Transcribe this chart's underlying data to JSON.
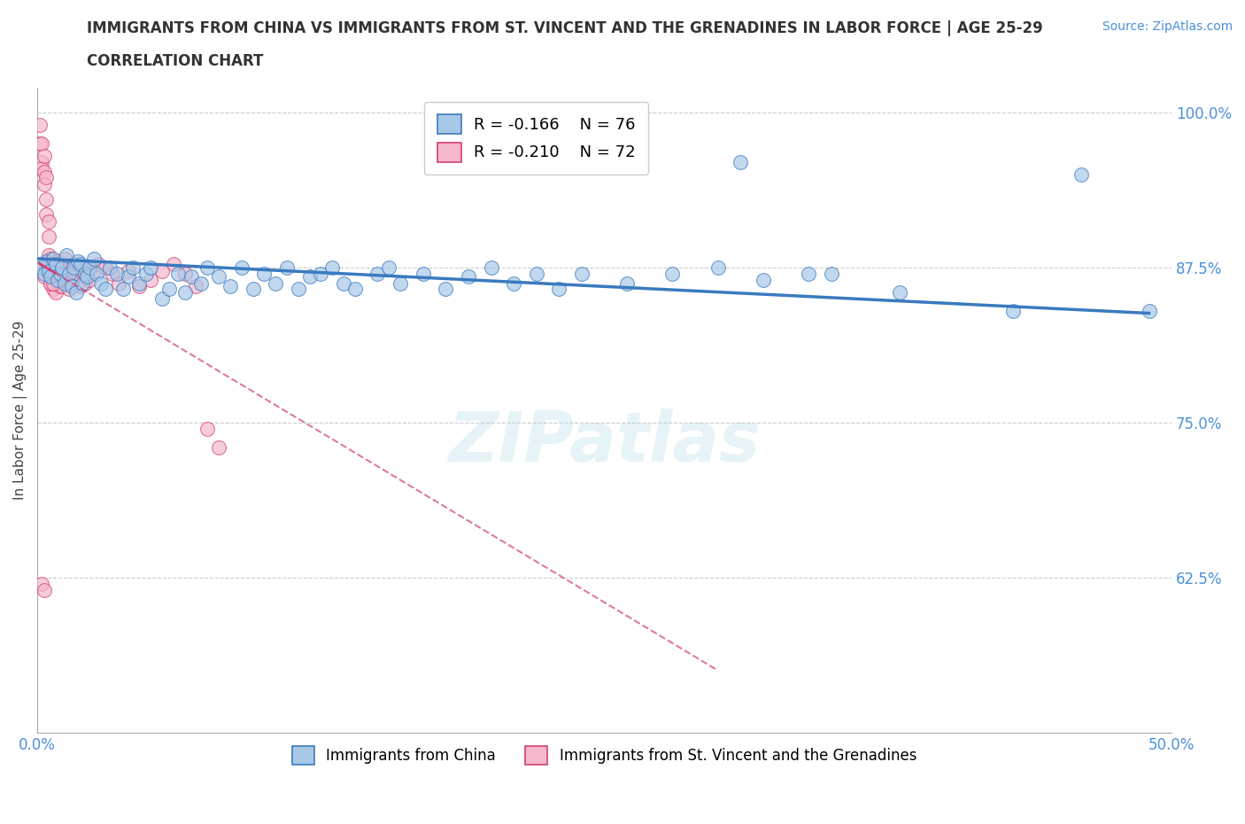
{
  "title_line1": "IMMIGRANTS FROM CHINA VS IMMIGRANTS FROM ST. VINCENT AND THE GRENADINES IN LABOR FORCE | AGE 25-29",
  "title_line2": "CORRELATION CHART",
  "source_text": "Source: ZipAtlas.com",
  "ylabel": "In Labor Force | Age 25-29",
  "xlim": [
    0.0,
    0.5
  ],
  "ylim": [
    0.5,
    1.02
  ],
  "blue_color": "#a8c8e8",
  "blue_line_color": "#3a7abf",
  "pink_color": "#f5b8cc",
  "pink_line_color": "#d44070",
  "legend_blue_label": "R = -0.166    N = 76",
  "legend_pink_label": "R = -0.210    N = 72",
  "watermark": "ZIPatlas",
  "bottom_legend_blue": "Immigrants from China",
  "bottom_legend_pink": "Immigrants from St. Vincent and the Grenadines",
  "blue_scatter_x": [
    0.002,
    0.003,
    0.004,
    0.005,
    0.006,
    0.007,
    0.008,
    0.009,
    0.01,
    0.011,
    0.012,
    0.013,
    0.014,
    0.015,
    0.016,
    0.017,
    0.018,
    0.019,
    0.02,
    0.021,
    0.022,
    0.023,
    0.025,
    0.026,
    0.028,
    0.03,
    0.032,
    0.035,
    0.038,
    0.04,
    0.042,
    0.045,
    0.048,
    0.05,
    0.055,
    0.058,
    0.062,
    0.065,
    0.068,
    0.072,
    0.075,
    0.08,
    0.085,
    0.09,
    0.095,
    0.1,
    0.105,
    0.11,
    0.115,
    0.12,
    0.125,
    0.13,
    0.135,
    0.14,
    0.15,
    0.155,
    0.16,
    0.17,
    0.18,
    0.19,
    0.2,
    0.21,
    0.22,
    0.23,
    0.24,
    0.26,
    0.28,
    0.3,
    0.32,
    0.35,
    0.38,
    0.31,
    0.34,
    0.43,
    0.46,
    0.49
  ],
  "blue_scatter_y": [
    0.875,
    0.87,
    0.88,
    0.872,
    0.868,
    0.882,
    0.878,
    0.865,
    0.87,
    0.875,
    0.862,
    0.885,
    0.87,
    0.86,
    0.875,
    0.855,
    0.88,
    0.878,
    0.862,
    0.87,
    0.868,
    0.875,
    0.882,
    0.87,
    0.862,
    0.858,
    0.875,
    0.87,
    0.858,
    0.868,
    0.875,
    0.862,
    0.87,
    0.875,
    0.85,
    0.858,
    0.87,
    0.855,
    0.868,
    0.862,
    0.875,
    0.868,
    0.86,
    0.875,
    0.858,
    0.87,
    0.862,
    0.875,
    0.858,
    0.868,
    0.87,
    0.875,
    0.862,
    0.858,
    0.87,
    0.875,
    0.862,
    0.87,
    0.858,
    0.868,
    0.875,
    0.862,
    0.87,
    0.858,
    0.87,
    0.862,
    0.87,
    0.875,
    0.865,
    0.87,
    0.855,
    0.96,
    0.87,
    0.84,
    0.95,
    0.84
  ],
  "pink_scatter_x": [
    0.001,
    0.001,
    0.002,
    0.002,
    0.002,
    0.003,
    0.003,
    0.003,
    0.004,
    0.004,
    0.004,
    0.005,
    0.005,
    0.005,
    0.005,
    0.006,
    0.006,
    0.006,
    0.007,
    0.007,
    0.007,
    0.008,
    0.008,
    0.008,
    0.009,
    0.009,
    0.01,
    0.01,
    0.01,
    0.011,
    0.011,
    0.012,
    0.012,
    0.013,
    0.013,
    0.014,
    0.014,
    0.015,
    0.015,
    0.016,
    0.016,
    0.017,
    0.018,
    0.019,
    0.02,
    0.021,
    0.022,
    0.023,
    0.025,
    0.027,
    0.03,
    0.033,
    0.036,
    0.04,
    0.045,
    0.05,
    0.055,
    0.06,
    0.065,
    0.07,
    0.075,
    0.08,
    0.003,
    0.004,
    0.005,
    0.006,
    0.007,
    0.008,
    0.009,
    0.01,
    0.002,
    0.003
  ],
  "pink_scatter_y": [
    0.99,
    0.975,
    0.975,
    0.96,
    0.955,
    0.965,
    0.952,
    0.942,
    0.948,
    0.93,
    0.918,
    0.912,
    0.9,
    0.885,
    0.878,
    0.882,
    0.875,
    0.862,
    0.878,
    0.87,
    0.858,
    0.878,
    0.868,
    0.855,
    0.88,
    0.862,
    0.875,
    0.868,
    0.86,
    0.872,
    0.86,
    0.882,
    0.865,
    0.875,
    0.87,
    0.862,
    0.858,
    0.868,
    0.872,
    0.878,
    0.862,
    0.875,
    0.87,
    0.86,
    0.872,
    0.862,
    0.87,
    0.865,
    0.872,
    0.878,
    0.875,
    0.87,
    0.862,
    0.872,
    0.86,
    0.865,
    0.872,
    0.878,
    0.87,
    0.86,
    0.745,
    0.73,
    0.868,
    0.875,
    0.87,
    0.862,
    0.862,
    0.87,
    0.875,
    0.868,
    0.62,
    0.615
  ]
}
